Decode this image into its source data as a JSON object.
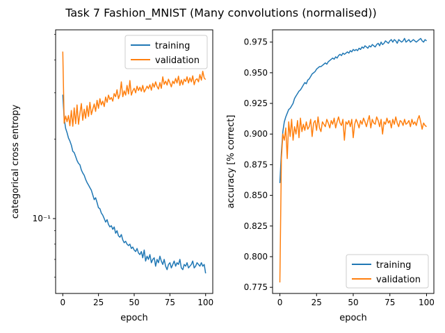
{
  "figure_title": "Task 7 Fashion_MNIST (Many convolutions (normalised))",
  "colors": {
    "training": "#1f77b4",
    "validation": "#ff7f0e",
    "axis": "#000000",
    "legend_border": "#cccccc",
    "background": "#ffffff"
  },
  "chart_data": [
    {
      "type": "line",
      "xlabel": "epoch",
      "ylabel": "categorical cross entropy",
      "yscale": "log",
      "xlim": [
        -5,
        105
      ],
      "ylim": [
        0.052,
        0.52
      ],
      "xticks": [
        0,
        25,
        50,
        75,
        100
      ],
      "xtick_labels": [
        "0",
        "25",
        "50",
        "75",
        "100"
      ],
      "yticks": [
        0.1
      ],
      "ytick_labels": [
        "10⁻¹"
      ],
      "grid": false,
      "legend_placement": "top-right",
      "series": [
        {
          "name": "training",
          "color": "#1f77b4",
          "x_start": 0,
          "x_step": 1,
          "values": [
            0.295,
            0.24,
            0.22,
            0.212,
            0.202,
            0.197,
            0.19,
            0.18,
            0.178,
            0.172,
            0.166,
            0.162,
            0.16,
            0.153,
            0.149,
            0.146,
            0.141,
            0.137,
            0.134,
            0.131,
            0.128,
            0.123,
            0.118,
            0.12,
            0.115,
            0.11,
            0.109,
            0.105,
            0.103,
            0.1,
            0.097,
            0.099,
            0.095,
            0.093,
            0.094,
            0.091,
            0.093,
            0.088,
            0.09,
            0.086,
            0.085,
            0.087,
            0.083,
            0.081,
            0.082,
            0.08,
            0.079,
            0.08,
            0.077,
            0.078,
            0.076,
            0.075,
            0.077,
            0.074,
            0.073,
            0.075,
            0.071,
            0.076,
            0.069,
            0.072,
            0.07,
            0.073,
            0.068,
            0.07,
            0.071,
            0.066,
            0.07,
            0.068,
            0.072,
            0.069,
            0.067,
            0.07,
            0.066,
            0.064,
            0.067,
            0.068,
            0.065,
            0.067,
            0.069,
            0.066,
            0.068,
            0.067,
            0.07,
            0.065,
            0.064,
            0.067,
            0.066,
            0.068,
            0.065,
            0.066,
            0.067,
            0.069,
            0.065,
            0.066,
            0.068,
            0.067,
            0.066,
            0.068,
            0.066,
            0.067,
            0.062
          ]
        },
        {
          "name": "validation",
          "color": "#ff7f0e",
          "x_start": 0,
          "x_step": 1,
          "values": [
            0.43,
            0.23,
            0.245,
            0.233,
            0.246,
            0.225,
            0.257,
            0.224,
            0.263,
            0.229,
            0.27,
            0.228,
            0.25,
            0.273,
            0.236,
            0.26,
            0.24,
            0.268,
            0.244,
            0.276,
            0.248,
            0.26,
            0.272,
            0.255,
            0.281,
            0.262,
            0.285,
            0.27,
            0.279,
            0.266,
            0.289,
            0.276,
            0.294,
            0.283,
            0.288,
            0.279,
            0.298,
            0.29,
            0.308,
            0.285,
            0.296,
            0.33,
            0.29,
            0.305,
            0.294,
            0.32,
            0.297,
            0.334,
            0.294,
            0.305,
            0.312,
            0.3,
            0.318,
            0.306,
            0.315,
            0.304,
            0.32,
            0.302,
            0.309,
            0.318,
            0.311,
            0.322,
            0.307,
            0.326,
            0.315,
            0.33,
            0.317,
            0.31,
            0.328,
            0.312,
            0.345,
            0.323,
            0.332,
            0.321,
            0.338,
            0.327,
            0.316,
            0.332,
            0.325,
            0.34,
            0.327,
            0.347,
            0.32,
            0.336,
            0.322,
            0.338,
            0.331,
            0.345,
            0.327,
            0.342,
            0.33,
            0.348,
            0.322,
            0.336,
            0.339,
            0.33,
            0.352,
            0.335,
            0.362,
            0.341,
            0.337
          ]
        }
      ]
    },
    {
      "type": "line",
      "xlabel": "epoch",
      "ylabel": "accuracy [% correct]",
      "yscale": "linear",
      "xlim": [
        -5,
        105
      ],
      "ylim": [
        0.77,
        0.985
      ],
      "xticks": [
        0,
        25,
        50,
        75,
        100
      ],
      "xtick_labels": [
        "0",
        "25",
        "50",
        "75",
        "100"
      ],
      "yticks": [
        0.775,
        0.8,
        0.825,
        0.85,
        0.875,
        0.9,
        0.925,
        0.95,
        0.975
      ],
      "ytick_labels": [
        "0.775",
        "0.800",
        "0.825",
        "0.850",
        "0.875",
        "0.900",
        "0.925",
        "0.950",
        "0.975"
      ],
      "grid": false,
      "legend_placement": "bottom-right",
      "series": [
        {
          "name": "training",
          "color": "#1f77b4",
          "x_start": 0,
          "x_step": 1,
          "values": [
            0.86,
            0.885,
            0.902,
            0.91,
            0.914,
            0.917,
            0.92,
            0.921,
            0.923,
            0.925,
            0.929,
            0.931,
            0.933,
            0.935,
            0.936,
            0.938,
            0.94,
            0.942,
            0.941,
            0.944,
            0.945,
            0.947,
            0.949,
            0.95,
            0.951,
            0.953,
            0.954,
            0.955,
            0.955,
            0.956,
            0.957,
            0.958,
            0.957,
            0.959,
            0.96,
            0.961,
            0.962,
            0.961,
            0.963,
            0.962,
            0.964,
            0.965,
            0.964,
            0.966,
            0.965,
            0.966,
            0.967,
            0.966,
            0.968,
            0.967,
            0.969,
            0.968,
            0.969,
            0.968,
            0.97,
            0.969,
            0.971,
            0.97,
            0.972,
            0.971,
            0.97,
            0.972,
            0.971,
            0.973,
            0.972,
            0.971,
            0.973,
            0.974,
            0.972,
            0.975,
            0.973,
            0.974,
            0.976,
            0.975,
            0.974,
            0.976,
            0.977,
            0.975,
            0.977,
            0.976,
            0.974,
            0.977,
            0.976,
            0.975,
            0.976,
            0.978,
            0.975,
            0.976,
            0.977,
            0.975,
            0.976,
            0.977,
            0.976,
            0.975,
            0.976,
            0.977,
            0.978,
            0.976,
            0.975,
            0.977,
            0.976
          ]
        },
        {
          "name": "validation",
          "color": "#ff7f0e",
          "x_start": 0,
          "x_step": 1,
          "values": [
            0.779,
            0.88,
            0.9,
            0.895,
            0.905,
            0.88,
            0.91,
            0.898,
            0.912,
            0.895,
            0.906,
            0.9,
            0.911,
            0.897,
            0.913,
            0.902,
            0.908,
            0.903,
            0.91,
            0.904,
            0.906,
            0.912,
            0.898,
            0.909,
            0.911,
            0.903,
            0.914,
            0.905,
            0.902,
            0.91,
            0.908,
            0.906,
            0.912,
            0.909,
            0.905,
            0.911,
            0.908,
            0.913,
            0.905,
            0.91,
            0.914,
            0.909,
            0.907,
            0.912,
            0.895,
            0.91,
            0.908,
            0.911,
            0.906,
            0.912,
            0.897,
            0.908,
            0.912,
            0.909,
            0.905,
            0.911,
            0.908,
            0.913,
            0.91,
            0.906,
            0.911,
            0.915,
            0.905,
            0.912,
            0.909,
            0.908,
            0.914,
            0.911,
            0.906,
            0.912,
            0.9,
            0.91,
            0.908,
            0.913,
            0.909,
            0.911,
            0.905,
            0.912,
            0.908,
            0.914,
            0.909,
            0.906,
            0.911,
            0.91,
            0.907,
            0.912,
            0.908,
            0.909,
            0.911,
            0.906,
            0.912,
            0.908,
            0.91,
            0.907,
            0.912,
            0.915,
            0.91,
            0.904,
            0.909,
            0.907,
            0.906
          ]
        }
      ]
    }
  ]
}
